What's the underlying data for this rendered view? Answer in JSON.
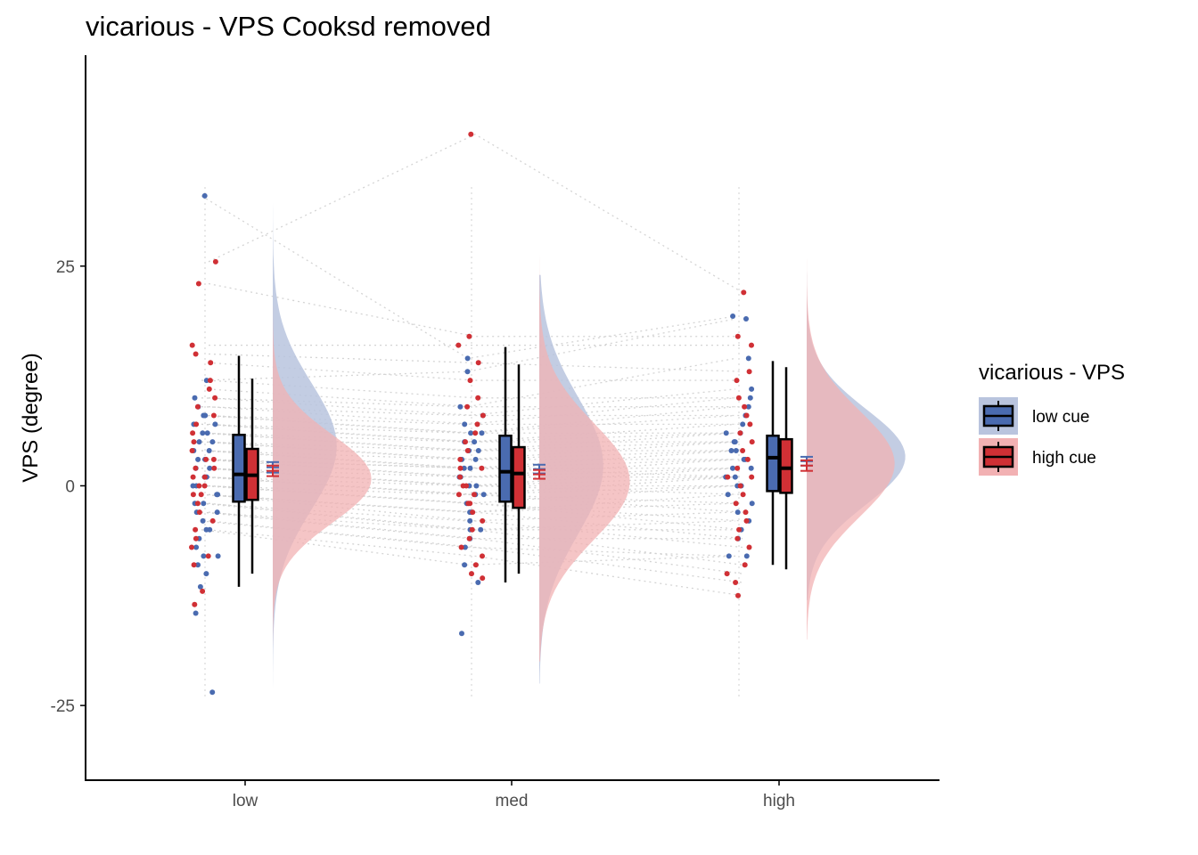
{
  "chart_data": {
    "type": "raincloud",
    "title": "vicarious  -  VPS  Cooksd removed",
    "xlabel": "",
    "ylabel": "VPS  (degree)",
    "categories": [
      "low",
      "med",
      "high"
    ],
    "y_ticks": [
      -25,
      0,
      25
    ],
    "y_tick_labels": [
      "-25",
      "0",
      "25"
    ],
    "ylim": [
      -33.5,
      49
    ],
    "grid": false,
    "legend": {
      "title": "vicarious  -  VPS",
      "position": "right"
    },
    "series": [
      {
        "name": "low cue",
        "color": "#4a6bb0",
        "fill": "#b9c4de",
        "box": [
          {
            "category": "low",
            "min": -11.5,
            "q1": -1.8,
            "median": 1.3,
            "q3": 5.8,
            "max": 14.8
          },
          {
            "category": "med",
            "min": -11.0,
            "q1": -1.8,
            "median": 1.6,
            "q3": 5.7,
            "max": 15.8
          },
          {
            "category": "high",
            "min": -9.0,
            "q1": -0.6,
            "median": 3.2,
            "q3": 5.7,
            "max": 14.2
          }
        ],
        "mean": [
          2.1,
          1.9,
          2.8
        ],
        "se": [
          0.6,
          0.5,
          0.5
        ],
        "density": [
          {
            "category": "low",
            "peak": 4.5,
            "sd": 7.2,
            "ymin": -29,
            "ymax": 39,
            "width": 0.24
          },
          {
            "category": "med",
            "peak": 2.3,
            "sd": 7.8,
            "ymin": -22.5,
            "ymax": 24,
            "width": 0.24
          },
          {
            "category": "high",
            "peak": 3.3,
            "sd": 5.4,
            "ymin": -13,
            "ymax": 27,
            "width": 0.37
          }
        ],
        "points": {
          "low": [
            33,
            12,
            10,
            9,
            8,
            8,
            7,
            7,
            6,
            6,
            5,
            5,
            4,
            4,
            3,
            3,
            2,
            2,
            1,
            1,
            0,
            0,
            -1,
            -1,
            -2,
            -2,
            -3,
            -3,
            -4,
            -5,
            -5,
            -6,
            -7,
            -8,
            -8,
            -9,
            -10,
            -11.5,
            -14.5,
            -23.5
          ],
          "med": [
            14.5,
            13,
            9,
            8,
            7,
            6,
            6,
            5,
            5,
            4,
            4,
            3,
            3,
            2,
            2,
            1,
            1,
            0,
            0,
            -1,
            -1,
            -2,
            -3,
            -3,
            -4,
            -5,
            -5,
            -6,
            -7,
            -9,
            -11,
            -16.8
          ],
          "high": [
            19.3,
            19,
            14.5,
            11,
            10,
            9,
            8,
            7,
            6,
            6,
            5,
            5,
            4,
            4,
            3,
            3,
            2,
            2,
            1,
            1,
            0,
            0,
            -1,
            -2,
            -3,
            -4,
            -5,
            -6,
            -8,
            -8
          ]
        }
      },
      {
        "name": "high cue",
        "color": "#d03035",
        "fill": "#f2b1b3",
        "box": [
          {
            "category": "low",
            "min": -10.0,
            "q1": -1.6,
            "median": 1.2,
            "q3": 4.2,
            "max": 12.2
          },
          {
            "category": "med",
            "min": -10.0,
            "q1": -2.5,
            "median": 1.4,
            "q3": 4.4,
            "max": 13.8
          },
          {
            "category": "high",
            "min": -9.5,
            "q1": -0.8,
            "median": 2.0,
            "q3": 5.3,
            "max": 13.5
          }
        ],
        "mean": [
          1.7,
          1.3,
          2.3
        ],
        "se": [
          0.6,
          0.5,
          0.6
        ],
        "density": [
          {
            "category": "low",
            "peak": 0.8,
            "sd": 5.0,
            "ymin": -18,
            "ymax": 29,
            "width": 0.37
          },
          {
            "category": "med",
            "peak": 0.5,
            "sd": 6.6,
            "ymin": -20,
            "ymax": 45,
            "width": 0.34
          },
          {
            "category": "high",
            "peak": 2.5,
            "sd": 6.0,
            "ymin": -17.5,
            "ymax": 26,
            "width": 0.33
          }
        ],
        "points": {
          "low": [
            25.5,
            23,
            16,
            15,
            14,
            12,
            11,
            10,
            9,
            8,
            7,
            6,
            5,
            4,
            3,
            3,
            2,
            2,
            1,
            1,
            0,
            0,
            -1,
            -1,
            -2,
            -3,
            -4,
            -5,
            -6,
            -7,
            -8,
            -9,
            -12,
            -13.5
          ],
          "med": [
            40,
            17,
            16,
            14,
            12,
            10,
            9,
            8,
            7,
            6,
            5,
            4,
            3,
            2,
            2,
            1,
            0,
            0,
            -1,
            -1,
            -2,
            -2,
            -3,
            -4,
            -5,
            -6,
            -7,
            -8,
            -9,
            -10,
            -10.5
          ],
          "high": [
            22,
            17,
            16,
            13,
            12,
            10,
            9,
            8,
            7,
            6,
            5,
            4,
            3,
            2,
            1,
            1,
            0,
            -1,
            -2,
            -3,
            -4,
            -5,
            -6,
            -7,
            -9,
            -10,
            -11,
            -12.5
          ]
        }
      }
    ]
  }
}
